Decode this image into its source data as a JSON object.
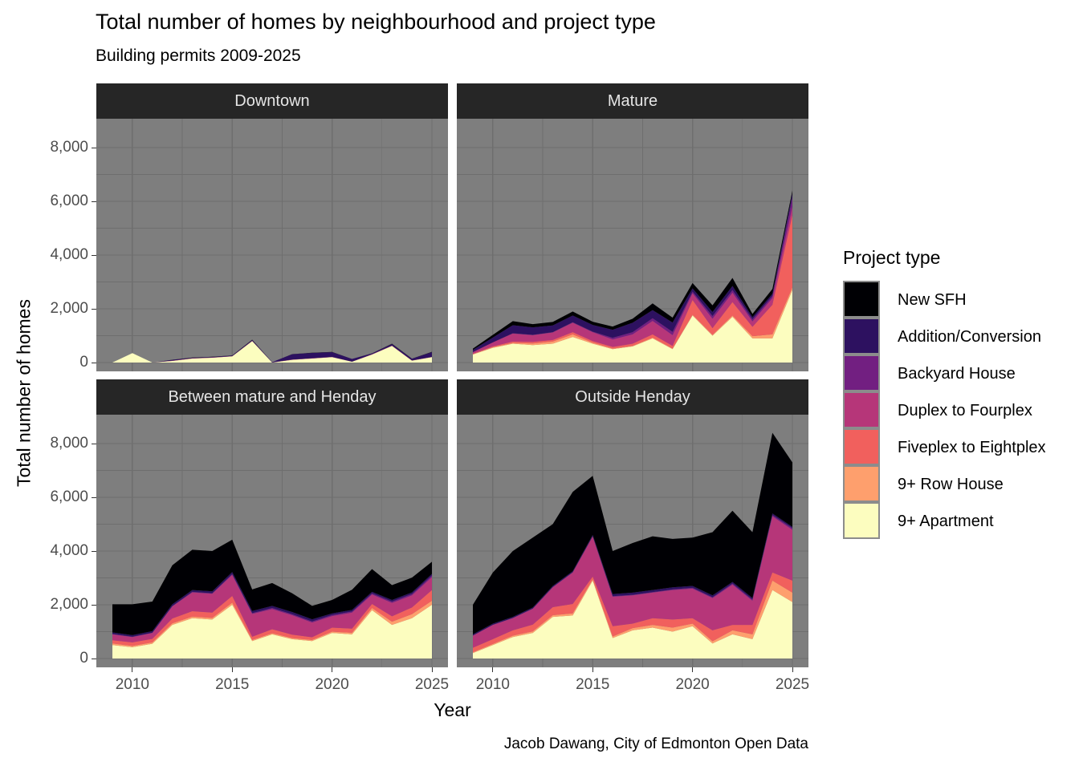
{
  "title": "Total number of homes by neighbourhood and project type",
  "subtitle": "Building permits 2009-2025",
  "caption": "Jacob Dawang, City of Edmonton Open Data",
  "axes": {
    "x_title": "Year",
    "y_title": "Total number of homes",
    "x_tick_labels": [
      "2010",
      "2015",
      "2020",
      "2025"
    ],
    "y_tick_labels": [
      "0",
      "2,000",
      "4,000",
      "6,000",
      "8,000"
    ]
  },
  "legend": {
    "title": "Project type",
    "items": [
      {
        "label": "New SFH",
        "color": "#000004"
      },
      {
        "label": "Addition/Conversion",
        "color": "#2D1160"
      },
      {
        "label": "Backyard House",
        "color": "#721F81"
      },
      {
        "label": "Duplex to Fourplex",
        "color": "#B63679"
      },
      {
        "label": "Fiveplex to Eightplex",
        "color": "#F1605D"
      },
      {
        "label": "9+ Row House",
        "color": "#FE9F6D"
      },
      {
        "label": "9+ Apartment",
        "color": "#FCFDBF"
      }
    ]
  },
  "colors": {
    "panel_bg": "#7E7E7E",
    "gridline": "#6E6E6E",
    "strip_bg": "#262626",
    "strip_text": "#E6E6E6",
    "axis_text": "#4D4D4D",
    "tick": "#333333"
  },
  "chart_data": {
    "type": "area",
    "stacked": true,
    "title": "Total number of homes by neighbourhood and project type",
    "subtitle": "Building permits 2009-2025",
    "xlabel": "Year",
    "ylabel": "Total number of homes",
    "xlim": [
      2009,
      2025
    ],
    "ylim": [
      0,
      8820
    ],
    "grid": {
      "x_major": [
        2010,
        2015,
        2020,
        2025
      ],
      "x_minor": [
        2012.5,
        2017.5,
        2022.5
      ],
      "y_major": [
        0,
        2000,
        4000,
        6000,
        8000
      ],
      "y_minor": [
        1000,
        3000,
        5000,
        7000
      ]
    },
    "legend_position": "right",
    "stack_order_bottom_to_top": [
      "9+ Apartment",
      "9+ Row House",
      "Fiveplex to Eightplex",
      "Duplex to Fourplex",
      "Backyard House",
      "Addition/Conversion",
      "New SFH"
    ],
    "x": [
      2009,
      2010,
      2011,
      2012,
      2013,
      2014,
      2015,
      2016,
      2017,
      2018,
      2019,
      2020,
      2021,
      2022,
      2023,
      2024,
      2025
    ],
    "facets": [
      {
        "name": "Downtown",
        "series": [
          {
            "name": "9+ Apartment",
            "values": [
              0,
              350,
              0,
              60,
              150,
              180,
              230,
              800,
              0,
              100,
              150,
              200,
              30,
              300,
              620,
              70,
              200
            ]
          },
          {
            "name": "9+ Row House",
            "values": [
              0,
              0,
              0,
              0,
              0,
              0,
              0,
              0,
              0,
              0,
              0,
              0,
              0,
              0,
              0,
              0,
              0
            ]
          },
          {
            "name": "Fiveplex to Eightplex",
            "values": [
              0,
              0,
              0,
              0,
              0,
              0,
              0,
              0,
              0,
              0,
              0,
              0,
              0,
              0,
              0,
              0,
              0
            ]
          },
          {
            "name": "Duplex to Fourplex",
            "values": [
              0,
              0,
              0,
              10,
              10,
              10,
              10,
              10,
              5,
              10,
              10,
              10,
              5,
              10,
              10,
              10,
              10
            ]
          },
          {
            "name": "Backyard House",
            "values": [
              0,
              0,
              0,
              0,
              0,
              0,
              0,
              0,
              0,
              0,
              0,
              0,
              0,
              0,
              0,
              0,
              0
            ]
          },
          {
            "name": "Addition/Conversion",
            "values": [
              0,
              0,
              0,
              30,
              20,
              20,
              20,
              30,
              10,
              200,
              200,
              180,
              100,
              30,
              60,
              60,
              180
            ]
          },
          {
            "name": "New SFH",
            "values": [
              0,
              0,
              0,
              5,
              5,
              5,
              5,
              10,
              0,
              5,
              5,
              5,
              0,
              5,
              10,
              5,
              10
            ]
          }
        ]
      },
      {
        "name": "Mature",
        "series": [
          {
            "name": "9+ Apartment",
            "values": [
              300,
              550,
              700,
              650,
              700,
              950,
              700,
              500,
              600,
              900,
              500,
              1750,
              1000,
              1700,
              900,
              900,
              2700
            ]
          },
          {
            "name": "9+ Row House",
            "values": [
              10,
              20,
              30,
              60,
              80,
              100,
              40,
              20,
              20,
              30,
              20,
              30,
              30,
              50,
              80,
              150,
              100
            ]
          },
          {
            "name": "Fiveplex to Eightplex",
            "values": [
              20,
              30,
              50,
              60,
              60,
              80,
              60,
              60,
              80,
              120,
              100,
              550,
              250,
              500,
              350,
              1100,
              2700
            ]
          },
          {
            "name": "Duplex to Fourplex",
            "values": [
              60,
              150,
              300,
              250,
              280,
              350,
              330,
              280,
              350,
              500,
              400,
              250,
              350,
              350,
              200,
              250,
              300
            ]
          },
          {
            "name": "Backyard House",
            "values": [
              0,
              0,
              10,
              10,
              10,
              20,
              20,
              60,
              80,
              100,
              120,
              60,
              100,
              100,
              80,
              80,
              350
            ]
          },
          {
            "name": "Addition/Conversion",
            "values": [
              80,
              180,
              300,
              280,
              250,
              250,
              250,
              300,
              350,
              300,
              350,
              120,
              150,
              150,
              80,
              80,
              150
            ]
          },
          {
            "name": "New SFH",
            "values": [
              50,
              100,
              150,
              120,
              130,
              150,
              120,
              120,
              150,
              250,
              180,
              200,
              250,
              300,
              120,
              180,
              100
            ]
          }
        ]
      },
      {
        "name": "Between mature and Henday",
        "series": [
          {
            "name": "9+ Apartment",
            "values": [
              500,
              420,
              550,
              1250,
              1500,
              1450,
              2000,
              650,
              900,
              720,
              650,
              950,
              900,
              1800,
              1250,
              1500,
              2000
            ]
          },
          {
            "name": "9+ Row House",
            "values": [
              60,
              50,
              50,
              60,
              60,
              60,
              80,
              40,
              40,
              40,
              40,
              50,
              60,
              80,
              120,
              150,
              150
            ]
          },
          {
            "name": "Fiveplex to Eightplex",
            "values": [
              120,
              130,
              130,
              180,
              200,
              200,
              250,
              120,
              150,
              130,
              100,
              150,
              150,
              150,
              200,
              250,
              400
            ]
          },
          {
            "name": "Duplex to Fourplex",
            "values": [
              220,
              200,
              220,
              450,
              700,
              700,
              780,
              850,
              750,
              720,
              550,
              430,
              600,
              350,
              500,
              450,
              480
            ]
          },
          {
            "name": "Backyard House",
            "values": [
              10,
              10,
              10,
              10,
              20,
              20,
              30,
              30,
              40,
              40,
              40,
              40,
              40,
              40,
              50,
              50,
              60
            ]
          },
          {
            "name": "Addition/Conversion",
            "values": [
              60,
              60,
              60,
              70,
              70,
              70,
              80,
              80,
              80,
              80,
              80,
              60,
              60,
              60,
              60,
              60,
              60
            ]
          },
          {
            "name": "New SFH",
            "values": [
              1050,
              1150,
              1100,
              1450,
              1500,
              1500,
              1200,
              800,
              850,
              700,
              500,
              500,
              750,
              850,
              550,
              550,
              450
            ]
          }
        ]
      },
      {
        "name": "Outside Henday",
        "series": [
          {
            "name": "9+ Apartment",
            "values": [
              200,
              500,
              800,
              950,
              1550,
              1600,
              2900,
              760,
              1050,
              1150,
              1000,
              1200,
              560,
              900,
              720,
              2550,
              2100
            ]
          },
          {
            "name": "9+ Row House",
            "values": [
              30,
              40,
              50,
              60,
              60,
              80,
              50,
              60,
              80,
              100,
              150,
              100,
              80,
              150,
              180,
              350,
              350
            ]
          },
          {
            "name": "Fiveplex to Eightplex",
            "values": [
              170,
              180,
              200,
              250,
              300,
              350,
              100,
              380,
              170,
              250,
              300,
              200,
              410,
              200,
              350,
              300,
              450
            ]
          },
          {
            "name": "Duplex to Fourplex",
            "values": [
              450,
              530,
              450,
              590,
              740,
              1170,
              1490,
              1100,
              1050,
              950,
              1100,
              1100,
              1200,
              1500,
              900,
              2090,
              1890
            ]
          },
          {
            "name": "Backyard House",
            "values": [
              5,
              5,
              10,
              10,
              10,
              10,
              10,
              20,
              20,
              20,
              20,
              30,
              30,
              40,
              40,
              50,
              60
            ]
          },
          {
            "name": "Addition/Conversion",
            "values": [
              45,
              45,
              40,
              40,
              40,
              40,
              50,
              80,
              80,
              80,
              80,
              70,
              70,
              60,
              60,
              60,
              50
            ]
          },
          {
            "name": "New SFH",
            "values": [
              1100,
              1900,
              2450,
              2600,
              2300,
              2950,
              2200,
              1600,
              1850,
              2000,
              1800,
              1800,
              2350,
              2650,
              2450,
              3000,
              2400
            ]
          }
        ]
      }
    ]
  }
}
